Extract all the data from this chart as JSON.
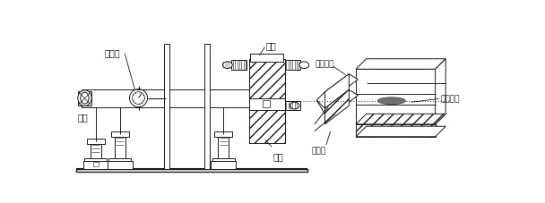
{
  "bg_color": "#ffffff",
  "lc": "#1a1a1a",
  "lw": 0.7,
  "labels": {
    "baifenbiao": "百分表",
    "yuangui": "圆规",
    "liangzhi": "量值",
    "chilun": "齿轮",
    "niehe_zhongxian": "啮合中线",
    "jiechu_bandian": "接触斑点",
    "niehe_mian": "啮合面"
  },
  "figsize": [
    6.08,
    2.27
  ],
  "dpi": 100
}
